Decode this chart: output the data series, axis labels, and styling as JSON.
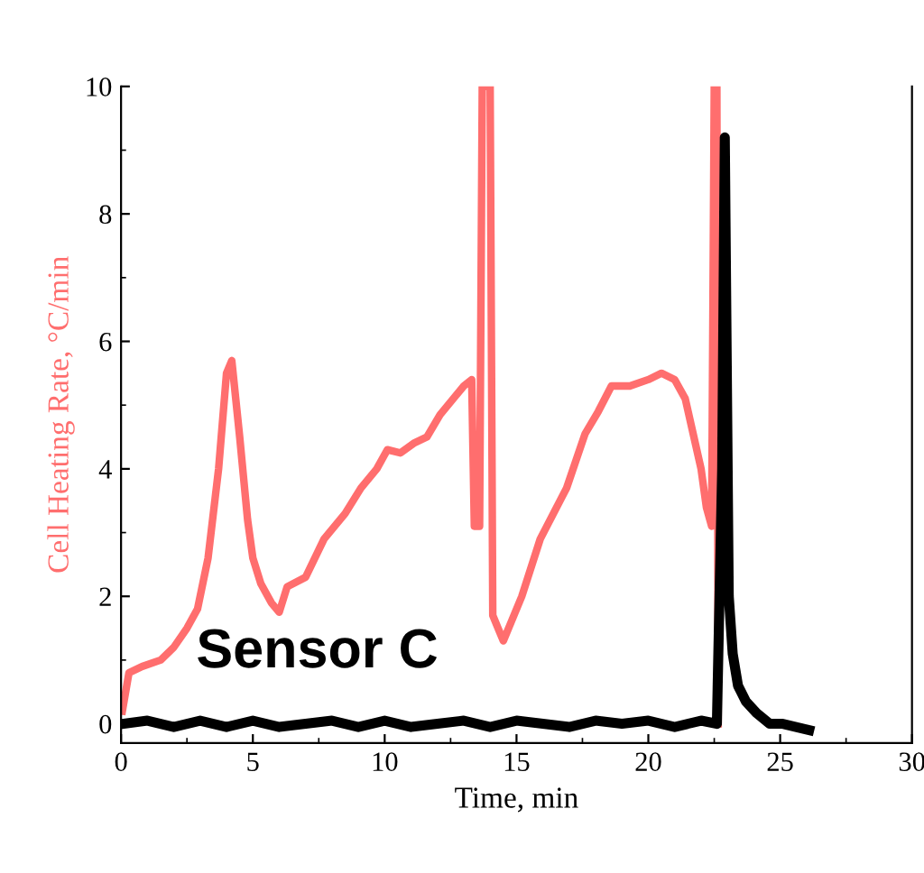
{
  "chart_data": {
    "type": "line",
    "xlabel": "Time, min",
    "ylabel": "Cell Heating Rate, °C/min",
    "xlim": [
      0,
      30
    ],
    "xticks": [
      0,
      5,
      10,
      15,
      20,
      25,
      30
    ],
    "ylim": [
      -0.3,
      10
    ],
    "yticks": [
      0,
      2,
      4,
      6,
      8,
      10
    ],
    "grid": false,
    "legend": false,
    "marker": "none",
    "line_style": "solid",
    "annotations": [
      "Sensor C"
    ],
    "series": [
      {
        "color": "#ff6e6e",
        "x": [
          0.05,
          0.3,
          0.8,
          1.5,
          2.0,
          2.5,
          2.9,
          3.3,
          3.7,
          4.0,
          4.2,
          4.5,
          4.8,
          5.0,
          5.3,
          5.7,
          6.0,
          6.3,
          7.0,
          7.7,
          8.5,
          9.1,
          9.7,
          10.1,
          10.6,
          11.1,
          11.6,
          12.1,
          12.6,
          13.0,
          13.3,
          13.4,
          13.6,
          13.7,
          14.0,
          14.1,
          14.3,
          14.5,
          14.8,
          15.2,
          15.9,
          16.4,
          16.9,
          17.6,
          18.1,
          18.6,
          19.3,
          20.0,
          20.5,
          21.0,
          21.4,
          21.7,
          22.0,
          22.2,
          22.4,
          22.5,
          22.6,
          22.65
        ],
        "values": [
          0.2,
          0.8,
          0.9,
          1.0,
          1.2,
          1.5,
          1.8,
          2.6,
          4.0,
          5.5,
          5.7,
          4.5,
          3.2,
          2.6,
          2.2,
          1.9,
          1.75,
          2.15,
          2.3,
          2.9,
          3.3,
          3.7,
          4.0,
          4.3,
          4.25,
          4.4,
          4.5,
          4.85,
          5.1,
          5.3,
          5.4,
          3.1,
          3.1,
          10,
          10,
          1.7,
          1.5,
          1.3,
          1.6,
          2.0,
          2.9,
          3.3,
          3.7,
          4.55,
          4.9,
          5.3,
          5.3,
          5.4,
          5.5,
          5.4,
          5.1,
          4.55,
          4.0,
          3.4,
          3.1,
          10,
          10,
          0
        ]
      },
      {
        "color": "#000000",
        "x": [
          0.1,
          1,
          2,
          3,
          4,
          5,
          6,
          7,
          8,
          9,
          10,
          11,
          12,
          13,
          14,
          15,
          16,
          17,
          18,
          19,
          20,
          21,
          22,
          22.6,
          22.8,
          22.9,
          23.05,
          23.2,
          23.4,
          23.7,
          24.1,
          24.6,
          25.1,
          25.6,
          26.1
        ],
        "values": [
          0.0,
          0.05,
          -0.05,
          0.05,
          -0.05,
          0.05,
          -0.05,
          0.0,
          0.05,
          -0.05,
          0.05,
          -0.05,
          0.0,
          0.05,
          -0.05,
          0.05,
          0.0,
          -0.05,
          0.05,
          0.0,
          0.05,
          -0.05,
          0.05,
          0.0,
          4.0,
          9.2,
          2.0,
          1.1,
          0.6,
          0.35,
          0.17,
          0.0,
          0.0,
          -0.05,
          -0.1
        ]
      }
    ]
  }
}
